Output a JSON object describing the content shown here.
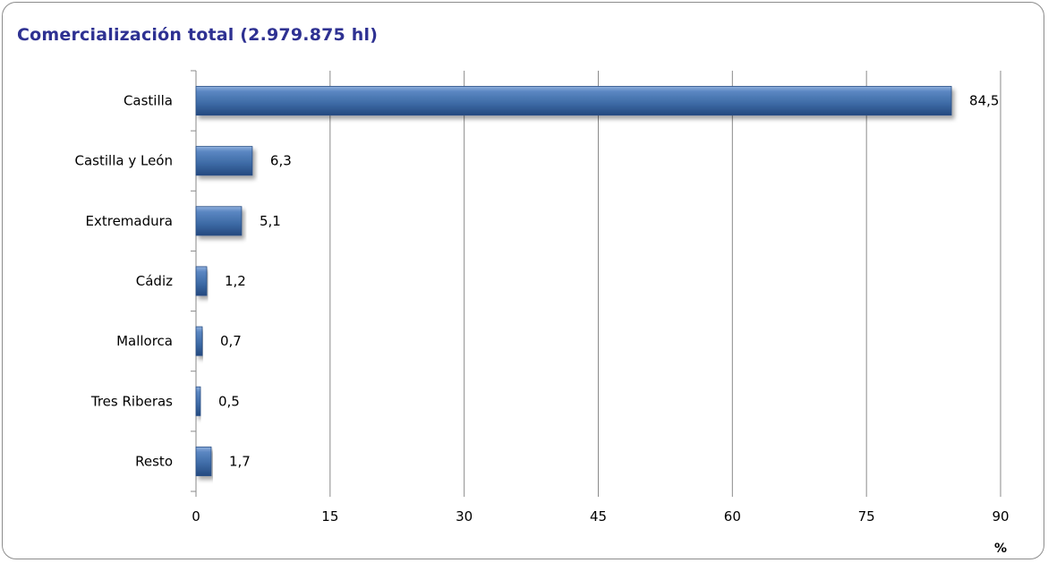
{
  "chart_data": {
    "type": "bar",
    "orientation": "horizontal",
    "title": "Comercialización total (2.979.875 hl)",
    "categories": [
      "Castilla",
      "Castilla y León",
      "Extremadura",
      "Cádiz",
      "Mallorca",
      "Tres Riberas",
      "Resto"
    ],
    "values": [
      84.5,
      6.3,
      5.1,
      1.2,
      0.7,
      0.5,
      1.7
    ],
    "value_labels": [
      "84,5",
      "6,3",
      "5,1",
      "1,2",
      "0,7",
      "0,5",
      "1,7"
    ],
    "xlabel": "%",
    "xlim": [
      0,
      90
    ],
    "x_ticks": [
      0,
      15,
      30,
      45,
      60,
      75,
      90
    ],
    "grid": true,
    "legend": "none",
    "bar_color": "#3d6aa5",
    "title_color": "#2e3192"
  }
}
